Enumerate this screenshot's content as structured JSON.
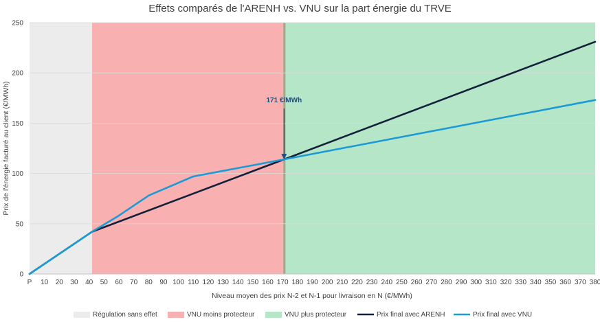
{
  "chart_data": {
    "type": "line",
    "title": "Effets comparés de l'ARENH vs. VNU sur la part énergie du TRVE",
    "xlabel": "Niveau moyen des prix N-2 et N-1 pour livraison en N (€/MWh)",
    "ylabel": "Prix de l'énergie facturé au client (€/MWh)",
    "xlim": [
      0,
      380
    ],
    "ylim": [
      0,
      250
    ],
    "x_ticks": [
      "P",
      "10",
      "20",
      "30",
      "40",
      "50",
      "60",
      "70",
      "80",
      "90",
      "100",
      "110",
      "120",
      "130",
      "140",
      "150",
      "160",
      "170",
      "180",
      "190",
      "200",
      "210",
      "220",
      "230",
      "240",
      "250",
      "260",
      "270",
      "280",
      "290",
      "300",
      "310",
      "320",
      "330",
      "340",
      "350",
      "360",
      "370",
      "380"
    ],
    "y_ticks": [
      "0",
      "50",
      "100",
      "150",
      "200",
      "250"
    ],
    "zones": [
      {
        "name": "Régulation sans effet",
        "from": 0,
        "to": 42,
        "color": "#ececec"
      },
      {
        "name": "VNU moins protecteur",
        "from": 42,
        "to": 171,
        "color": "#f9b0b0"
      },
      {
        "name": "VNU plus protecteur",
        "from": 171,
        "to": 380,
        "color": "#b5e6c8"
      }
    ],
    "series": [
      {
        "name": "Prix final avec ARENH",
        "color": "#14203a",
        "x": [
          0,
          42,
          171,
          380
        ],
        "y": [
          0,
          42,
          114,
          231
        ]
      },
      {
        "name": "Prix final avec VNU",
        "color": "#1c9ad6",
        "x": [
          0,
          42,
          60,
          80,
          110,
          171,
          380
        ],
        "y": [
          0,
          42,
          58,
          78,
          97,
          114,
          173
        ]
      }
    ],
    "annotation": {
      "text": "171 €/MWh",
      "x": 171,
      "y": 114
    },
    "legend_position": "bottom"
  }
}
